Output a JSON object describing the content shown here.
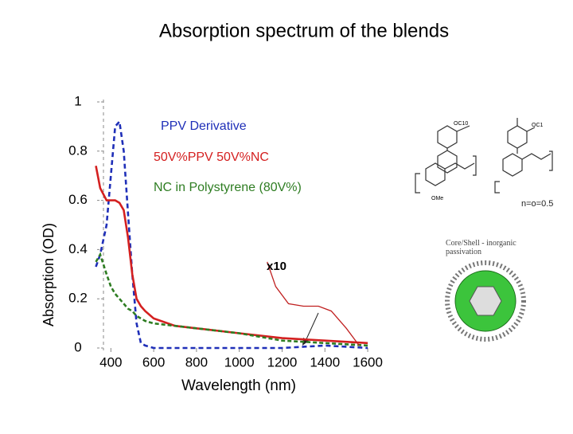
{
  "chart_data": {
    "type": "line",
    "title": "Absorption spectrum of the blends",
    "x_label": "Wavelength (nm)",
    "y_label": "Absorption (OD)",
    "x": [
      330,
      350,
      380,
      400,
      420,
      440,
      460,
      480,
      500,
      520,
      540,
      560,
      600,
      700,
      800,
      1000,
      1200,
      1400,
      1600
    ],
    "series": [
      {
        "name": "PPV Derivative",
        "color": "#1f2fb8",
        "dash": "6,4",
        "values": [
          0.33,
          0.38,
          0.5,
          0.7,
          0.9,
          0.92,
          0.8,
          0.55,
          0.3,
          0.1,
          0.02,
          0.01,
          0,
          0,
          0,
          0,
          0,
          0.01,
          0
        ]
      },
      {
        "name": "50V%PPV 50V%NC",
        "color": "#d42020",
        "dash": "none",
        "values": [
          0.74,
          0.65,
          0.6,
          0.6,
          0.6,
          0.59,
          0.56,
          0.45,
          0.3,
          0.2,
          0.17,
          0.15,
          0.12,
          0.09,
          0.08,
          0.06,
          0.04,
          0.03,
          0.02
        ]
      },
      {
        "name": "NC in Polystyrene (80V%)",
        "color": "#2e7d22",
        "dash": "5,3",
        "values": [
          0.35,
          0.38,
          0.3,
          0.25,
          0.22,
          0.2,
          0.18,
          0.16,
          0.15,
          0.13,
          0.12,
          0.11,
          0.1,
          0.09,
          0.08,
          0.06,
          0.03,
          0.02,
          0.01
        ]
      }
    ],
    "magnified": {
      "label": "x10",
      "color": "#c02020",
      "x": [
        1130,
        1170,
        1230,
        1300,
        1370,
        1430,
        1500,
        1560
      ],
      "values": [
        0.35,
        0.25,
        0.18,
        0.17,
        0.17,
        0.15,
        0.08,
        0.01
      ]
    },
    "xlim": [
      330,
      1650
    ],
    "xticks": [
      400,
      600,
      800,
      1000,
      1200,
      1400,
      1600
    ],
    "ylim": [
      0,
      1
    ],
    "yticks": [
      0,
      0.2,
      0.4,
      0.6,
      0.8,
      1
    ]
  },
  "figures": {
    "polymer_note": "n=o=0.5",
    "side_chain_1": "OC10",
    "side_chain_2": "OC1",
    "side_chain_3": "OMe",
    "nanocrystal_label": "Core/Shell - inorganic passivation"
  }
}
